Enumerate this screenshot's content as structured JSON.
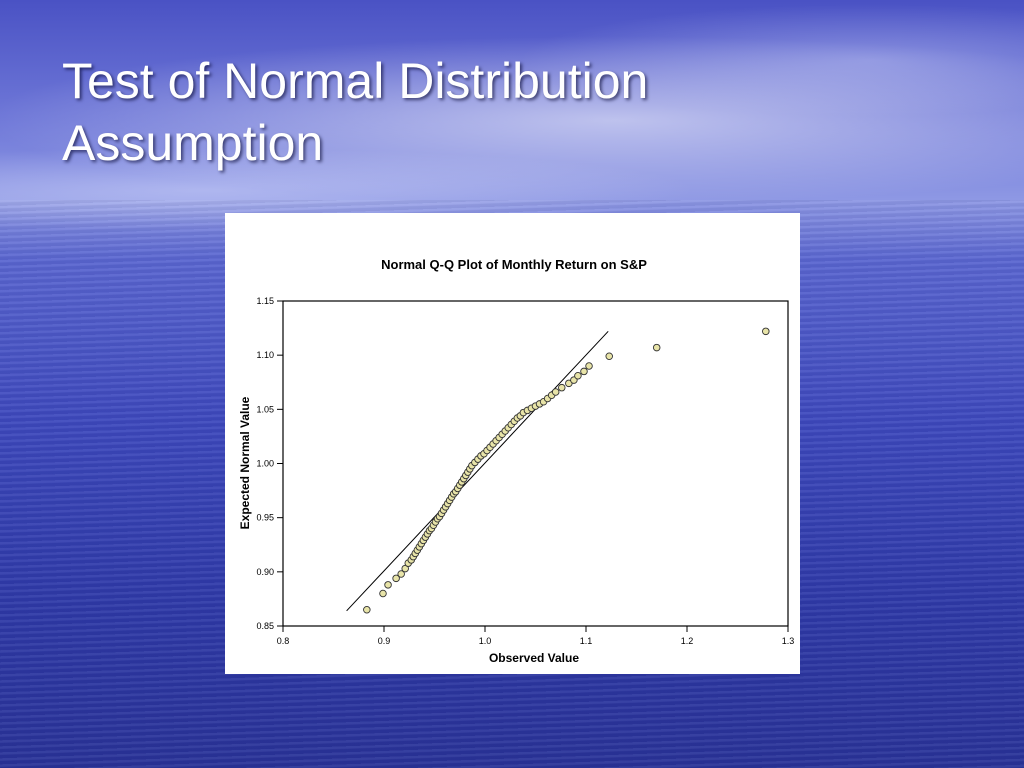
{
  "slide": {
    "title_line1": "Test of Normal Distribution",
    "title_line2": "Assumption"
  },
  "chart_data": {
    "type": "scatter",
    "title": "Normal Q-Q Plot of Monthly Return on S&P",
    "xlabel": "Observed Value",
    "ylabel": "Expected Normal Value",
    "xlim": [
      0.8,
      1.3
    ],
    "ylim": [
      0.85,
      1.15
    ],
    "x_ticks": [
      "0.8",
      "0.9",
      "1.0",
      "1.1",
      "1.2",
      "1.3"
    ],
    "y_ticks": [
      "0.85",
      "0.90",
      "0.95",
      "1.00",
      "1.05",
      "1.10",
      "1.15"
    ],
    "reference_line": {
      "x": [
        0.863,
        1.122
      ],
      "y": [
        0.864,
        1.122
      ]
    },
    "point_color": "#e8e4a8",
    "points": [
      [
        0.883,
        0.865
      ],
      [
        0.899,
        0.88
      ],
      [
        0.904,
        0.888
      ],
      [
        0.912,
        0.894
      ],
      [
        0.917,
        0.898
      ],
      [
        0.921,
        0.903
      ],
      [
        0.924,
        0.908
      ],
      [
        0.927,
        0.911
      ],
      [
        0.929,
        0.914
      ],
      [
        0.931,
        0.917
      ],
      [
        0.933,
        0.92
      ],
      [
        0.935,
        0.923
      ],
      [
        0.937,
        0.926
      ],
      [
        0.939,
        0.929
      ],
      [
        0.941,
        0.932
      ],
      [
        0.943,
        0.935
      ],
      [
        0.945,
        0.938
      ],
      [
        0.947,
        0.94
      ],
      [
        0.949,
        0.943
      ],
      [
        0.951,
        0.946
      ],
      [
        0.953,
        0.949
      ],
      [
        0.955,
        0.951
      ],
      [
        0.957,
        0.954
      ],
      [
        0.959,
        0.957
      ],
      [
        0.961,
        0.96
      ],
      [
        0.963,
        0.963
      ],
      [
        0.965,
        0.966
      ],
      [
        0.967,
        0.969
      ],
      [
        0.969,
        0.972
      ],
      [
        0.971,
        0.974
      ],
      [
        0.973,
        0.977
      ],
      [
        0.975,
        0.98
      ],
      [
        0.977,
        0.983
      ],
      [
        0.979,
        0.986
      ],
      [
        0.981,
        0.989
      ],
      [
        0.983,
        0.992
      ],
      [
        0.985,
        0.995
      ],
      [
        0.987,
        0.998
      ],
      [
        0.99,
        1.001
      ],
      [
        0.993,
        1.004
      ],
      [
        0.996,
        1.007
      ],
      [
        0.999,
        1.009
      ],
      [
        1.002,
        1.012
      ],
      [
        1.005,
        1.015
      ],
      [
        1.008,
        1.018
      ],
      [
        1.011,
        1.021
      ],
      [
        1.014,
        1.024
      ],
      [
        1.017,
        1.027
      ],
      [
        1.02,
        1.03
      ],
      [
        1.023,
        1.033
      ],
      [
        1.026,
        1.036
      ],
      [
        1.029,
        1.039
      ],
      [
        1.032,
        1.042
      ],
      [
        1.035,
        1.044
      ],
      [
        1.038,
        1.047
      ],
      [
        1.042,
        1.049
      ],
      [
        1.046,
        1.051
      ],
      [
        1.05,
        1.053
      ],
      [
        1.054,
        1.055
      ],
      [
        1.058,
        1.057
      ],
      [
        1.062,
        1.06
      ],
      [
        1.066,
        1.063
      ],
      [
        1.07,
        1.066
      ],
      [
        1.076,
        1.07
      ],
      [
        1.083,
        1.074
      ],
      [
        1.088,
        1.077
      ],
      [
        1.092,
        1.081
      ],
      [
        1.098,
        1.085
      ],
      [
        1.103,
        1.09
      ],
      [
        1.123,
        1.099
      ],
      [
        1.17,
        1.107
      ],
      [
        1.278,
        1.122
      ]
    ]
  }
}
